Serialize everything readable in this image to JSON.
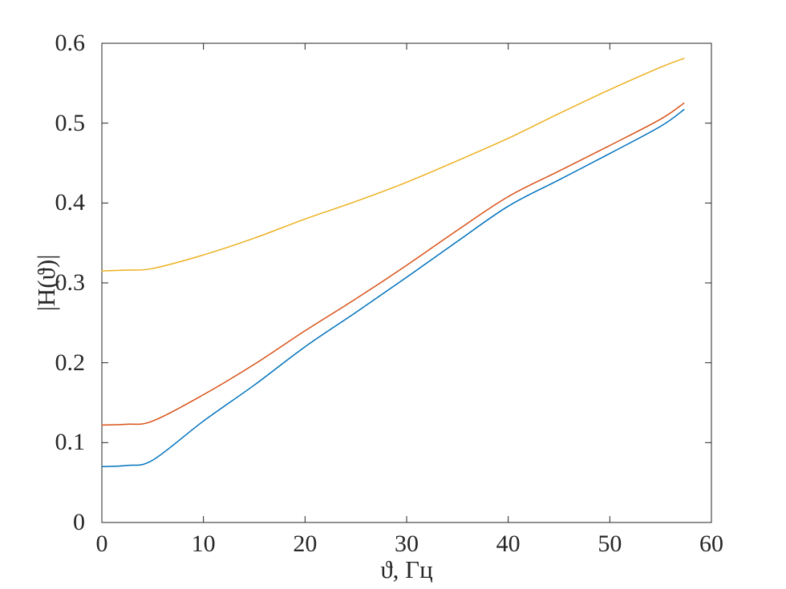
{
  "figure": {
    "background": "#ffffff",
    "axes_color": "#262626",
    "text_color": "#262626"
  },
  "chart_data": {
    "type": "line",
    "title": "",
    "xlabel": "ϑ, Гц",
    "ylabel": "|H(ϑ)|",
    "xlim": [
      0,
      60
    ],
    "ylim": [
      0,
      0.6
    ],
    "xticks": [
      0,
      10,
      20,
      30,
      40,
      50,
      60
    ],
    "yticks": [
      0,
      0.1,
      0.2,
      0.3,
      0.4,
      0.5,
      0.6
    ],
    "grid": false,
    "legend": "none",
    "x": [
      0,
      2.5,
      5,
      10,
      15,
      20,
      25,
      30,
      35,
      40,
      45,
      50,
      55,
      57.3
    ],
    "series": [
      {
        "name": "series-1-blue",
        "color": "#0072BD",
        "values": [
          0.07,
          0.0715,
          0.078,
          0.127,
          0.172,
          0.22,
          0.263,
          0.307,
          0.352,
          0.396,
          0.429,
          0.462,
          0.496,
          0.517
        ]
      },
      {
        "name": "series-2-orange",
        "color": "#D95319",
        "values": [
          0.122,
          0.123,
          0.127,
          0.16,
          0.198,
          0.24,
          0.28,
          0.322,
          0.366,
          0.408,
          0.44,
          0.472,
          0.505,
          0.525
        ]
      },
      {
        "name": "series-3-yellow",
        "color": "#EDB120",
        "values": [
          0.315,
          0.316,
          0.318,
          0.335,
          0.356,
          0.38,
          0.402,
          0.426,
          0.453,
          0.481,
          0.512,
          0.542,
          0.57,
          0.581
        ]
      }
    ]
  }
}
